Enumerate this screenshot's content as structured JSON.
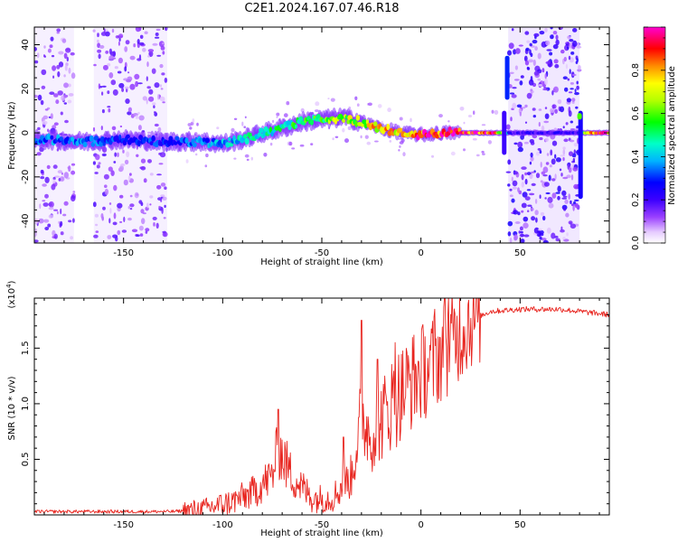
{
  "figure": {
    "title": "C2E1.2024.167.07.46.R18"
  },
  "colors": {
    "axis": "#000000",
    "snr_line": "#e8251f",
    "colormap": [
      "#ffffff",
      "#d9b8ff",
      "#8a2be2",
      "#5a00ff",
      "#0000ff",
      "#00c8ff",
      "#00ff80",
      "#7fff00",
      "#ffff00",
      "#ff8000",
      "#ff0000",
      "#ff00ff"
    ]
  },
  "chart_data": [
    {
      "type": "heatmap",
      "title": "",
      "xlabel": "Height of straight line (km)",
      "ylabel": "Frequency (Hz)",
      "xlim": [
        -195,
        95
      ],
      "ylim": [
        -50,
        48
      ],
      "x_ticks": [
        -150,
        -100,
        -50,
        0,
        50
      ],
      "y_ticks": [
        -40,
        -20,
        0,
        20,
        40
      ],
      "colorbar": {
        "label": "Normalized spectral amplitude",
        "range": [
          0.0,
          1.0
        ],
        "ticks": [
          0.0,
          0.2,
          0.4,
          0.6,
          0.8
        ]
      },
      "ridge": {
        "description_points": [
          {
            "x": -190,
            "y": -3,
            "amp": 0.35
          },
          {
            "x": -170,
            "y": -4,
            "amp": 0.35
          },
          {
            "x": -150,
            "y": -3,
            "amp": 0.3
          },
          {
            "x": -130,
            "y": -4,
            "amp": 0.3
          },
          {
            "x": -110,
            "y": -4,
            "amp": 0.35
          },
          {
            "x": -100,
            "y": -5,
            "amp": 0.4
          },
          {
            "x": -90,
            "y": -3,
            "amp": 0.45
          },
          {
            "x": -80,
            "y": 0,
            "amp": 0.5
          },
          {
            "x": -70,
            "y": 2,
            "amp": 0.5
          },
          {
            "x": -60,
            "y": 5,
            "amp": 0.55
          },
          {
            "x": -50,
            "y": 6,
            "amp": 0.6
          },
          {
            "x": -40,
            "y": 7,
            "amp": 0.65
          },
          {
            "x": -30,
            "y": 5,
            "amp": 0.7
          },
          {
            "x": -20,
            "y": 2,
            "amp": 0.8
          },
          {
            "x": -10,
            "y": 0,
            "amp": 0.85
          },
          {
            "x": 0,
            "y": -1,
            "amp": 0.9
          },
          {
            "x": 10,
            "y": 0,
            "amp": 0.9
          },
          {
            "x": 20,
            "y": 0,
            "amp": 0.95
          },
          {
            "x": 35,
            "y": 0,
            "amp": 0.95
          },
          {
            "x": 50,
            "y": 0,
            "amp": 0.3
          },
          {
            "x": 80,
            "y": 0,
            "amp": 0.5
          },
          {
            "x": 90,
            "y": 0,
            "amp": 0.95
          }
        ],
        "noise_bands_km": [
          [
            -195,
            -175
          ],
          [
            -165,
            -128
          ],
          [
            44,
            80
          ]
        ]
      }
    },
    {
      "type": "line",
      "title": "",
      "xlabel": "Height of straight line (km)",
      "ylabel": "SNR (10 * v/v)",
      "y_multiplier": "(x10^4)",
      "xlim": [
        -195,
        95
      ],
      "ylim": [
        0.0,
        1.95
      ],
      "x_ticks": [
        -150,
        -100,
        -50,
        0,
        50
      ],
      "y_ticks": [
        0.5,
        1.0,
        1.5
      ],
      "series": [
        {
          "color": "#e8251f",
          "envelope_points": [
            {
              "x": -195,
              "y": 0.03
            },
            {
              "x": -150,
              "y": 0.03
            },
            {
              "x": -125,
              "y": 0.03
            },
            {
              "x": -110,
              "y": 0.05
            },
            {
              "x": -95,
              "y": 0.12
            },
            {
              "x": -85,
              "y": 0.2
            },
            {
              "x": -75,
              "y": 0.35
            },
            {
              "x": -72,
              "y": 0.6
            },
            {
              "x": -65,
              "y": 0.35
            },
            {
              "x": -55,
              "y": 0.15
            },
            {
              "x": -45,
              "y": 0.15
            },
            {
              "x": -35,
              "y": 0.35
            },
            {
              "x": -30,
              "y": 0.9
            },
            {
              "x": -25,
              "y": 0.7
            },
            {
              "x": -15,
              "y": 1.0
            },
            {
              "x": -5,
              "y": 1.2
            },
            {
              "x": 5,
              "y": 1.35
            },
            {
              "x": 15,
              "y": 1.55
            },
            {
              "x": 25,
              "y": 1.75
            },
            {
              "x": 35,
              "y": 1.83
            },
            {
              "x": 50,
              "y": 1.85
            },
            {
              "x": 70,
              "y": 1.85
            },
            {
              "x": 85,
              "y": 1.82
            },
            {
              "x": 95,
              "y": 1.8
            }
          ],
          "spikes": [
            {
              "x": -72,
              "y": 0.95
            },
            {
              "x": -39,
              "y": 0.7
            },
            {
              "x": -30,
              "y": 1.75
            },
            {
              "x": -22,
              "y": 1.4
            },
            {
              "x": -13,
              "y": 1.55
            },
            {
              "x": 7,
              "y": 1.85
            },
            {
              "x": 12,
              "y": 1.95
            },
            {
              "x": 14,
              "y": 1.95
            }
          ]
        }
      ]
    }
  ]
}
